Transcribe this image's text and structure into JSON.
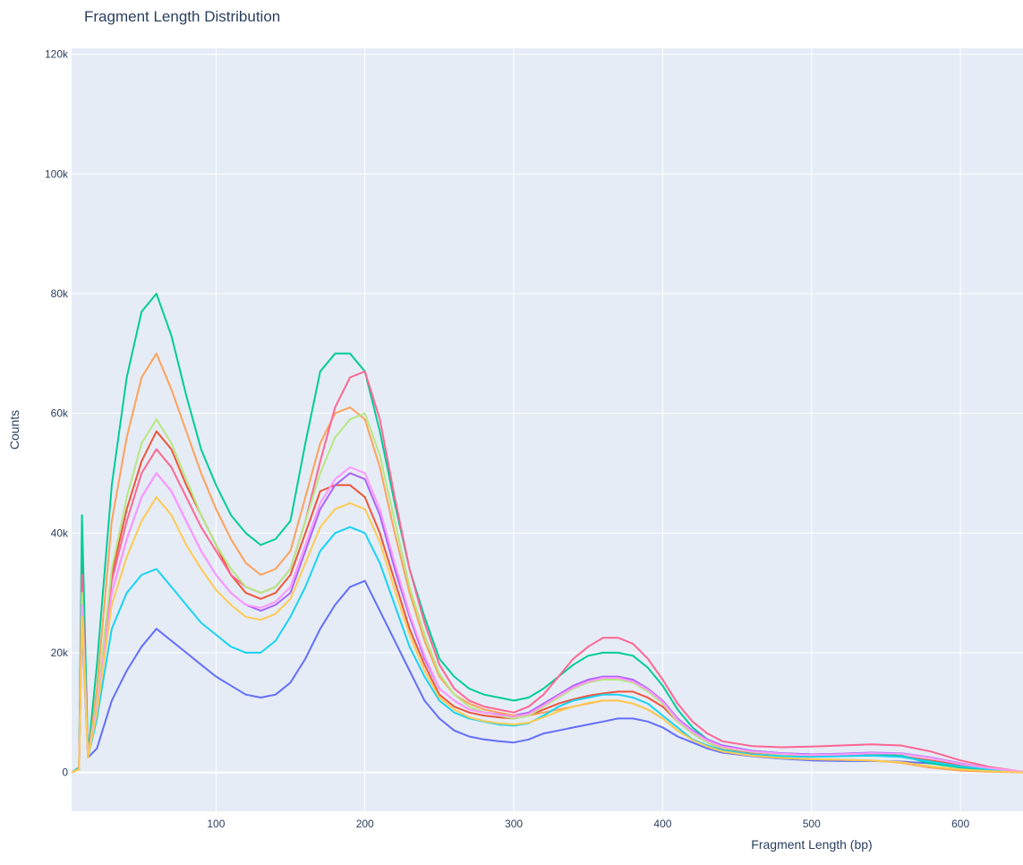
{
  "chart_data": {
    "type": "line",
    "title": "Fragment Length Distribution",
    "xlabel": "Fragment Length (bp)",
    "ylabel": "Counts",
    "xlim": [
      3,
      642
    ],
    "ylim": [
      -6500,
      121000
    ],
    "xticks": [
      100,
      200,
      300,
      400,
      500,
      600
    ],
    "xtick_labels": [
      "100",
      "200",
      "300",
      "400",
      "500",
      "600"
    ],
    "yticks": [
      0,
      20000,
      40000,
      60000,
      80000,
      100000,
      120000
    ],
    "ytick_labels": [
      "0",
      "20k",
      "40k",
      "60k",
      "80k",
      "100k",
      "120k"
    ],
    "grid": true,
    "legend": "none",
    "x": [
      3,
      8,
      10,
      14,
      20,
      30,
      40,
      50,
      60,
      70,
      80,
      90,
      100,
      110,
      120,
      130,
      140,
      150,
      160,
      170,
      180,
      190,
      200,
      210,
      220,
      230,
      240,
      250,
      260,
      270,
      280,
      290,
      300,
      310,
      320,
      330,
      340,
      350,
      360,
      370,
      380,
      390,
      400,
      410,
      420,
      430,
      440,
      460,
      480,
      500,
      520,
      540,
      560,
      580,
      600,
      620,
      642
    ],
    "series": [
      {
        "color": "#636efa",
        "values": [
          0,
          500,
          25000,
          2500,
          4000,
          12000,
          17000,
          21000,
          24000,
          22000,
          20000,
          18000,
          16000,
          14500,
          13000,
          12500,
          13000,
          15000,
          19000,
          24000,
          28000,
          31000,
          32000,
          27000,
          22000,
          17000,
          12000,
          9000,
          7000,
          6000,
          5500,
          5200,
          5000,
          5500,
          6500,
          7000,
          7500,
          8000,
          8500,
          9000,
          9000,
          8500,
          7500,
          6000,
          5000,
          4000,
          3300,
          2700,
          2300,
          2000,
          1900,
          1900,
          1800,
          1500,
          1000,
          500,
          100
        ]
      },
      {
        "color": "#ef553b",
        "values": [
          0,
          500,
          35000,
          2500,
          12000,
          33000,
          44000,
          52000,
          57000,
          54000,
          48000,
          43000,
          38000,
          33000,
          30000,
          29000,
          30000,
          33000,
          40000,
          47000,
          48000,
          48000,
          46000,
          40000,
          32000,
          24000,
          18000,
          13000,
          11000,
          10000,
          9500,
          9200,
          9000,
          9500,
          10500,
          11500,
          12200,
          12800,
          13200,
          13500,
          13500,
          12500,
          11000,
          8500,
          6500,
          5000,
          4000,
          3300,
          3000,
          2800,
          2800,
          2900,
          2700,
          2000,
          1200,
          600,
          100
        ]
      },
      {
        "color": "#00cc96",
        "values": [
          0,
          800,
          43000,
          3000,
          18000,
          48000,
          66000,
          77000,
          80000,
          73000,
          63000,
          54000,
          48000,
          43000,
          40000,
          38000,
          39000,
          42000,
          55000,
          67000,
          70000,
          70000,
          67000,
          57000,
          45000,
          34000,
          26000,
          19000,
          16000,
          14000,
          13000,
          12500,
          12000,
          12500,
          14000,
          16000,
          18000,
          19500,
          20000,
          20000,
          19500,
          17500,
          14500,
          10500,
          7500,
          5500,
          4500,
          3600,
          3200,
          3000,
          3000,
          3100,
          2800,
          1500,
          800,
          400,
          100
        ]
      },
      {
        "color": "#ab63fa",
        "values": [
          0,
          500,
          30000,
          2500,
          11000,
          30000,
          39000,
          46000,
          50000,
          47000,
          42000,
          37000,
          33000,
          30000,
          28000,
          27000,
          28000,
          30000,
          37000,
          44000,
          48000,
          50000,
          49000,
          43000,
          34000,
          26000,
          19000,
          14000,
          12000,
          10500,
          10000,
          9700,
          9500,
          10000,
          11500,
          13000,
          14500,
          15500,
          16000,
          16000,
          15500,
          14000,
          12000,
          9000,
          7000,
          5500,
          4500,
          3600,
          3200,
          3000,
          3100,
          3300,
          3200,
          2500,
          1500,
          700,
          100
        ]
      },
      {
        "color": "#ffa15a",
        "values": [
          0,
          600,
          28000,
          2500,
          14000,
          42000,
          56000,
          66000,
          70000,
          64000,
          57000,
          50000,
          44000,
          39000,
          35000,
          33000,
          34000,
          37000,
          46000,
          55000,
          60000,
          61000,
          59000,
          51000,
          40000,
          30000,
          22000,
          16000,
          13000,
          11500,
          10500,
          10000,
          9500,
          9500,
          10000,
          10500,
          11000,
          11500,
          12000,
          12000,
          11500,
          10500,
          9000,
          7000,
          5500,
          4300,
          3500,
          2800,
          2400,
          2200,
          2100,
          2000,
          1600,
          800,
          300,
          100,
          0
        ]
      },
      {
        "color": "#19d3f3",
        "values": [
          0,
          500,
          30000,
          2500,
          9000,
          24000,
          30000,
          33000,
          34000,
          31000,
          28000,
          25000,
          23000,
          21000,
          20000,
          20000,
          22000,
          26000,
          31000,
          37000,
          40000,
          41000,
          40000,
          35000,
          28000,
          21000,
          16000,
          12000,
          10000,
          9000,
          8500,
          8000,
          7800,
          8200,
          9500,
          11000,
          12000,
          12500,
          13000,
          13000,
          12500,
          11500,
          9500,
          7500,
          5500,
          4500,
          3700,
          3000,
          2700,
          2600,
          2700,
          2800,
          2600,
          1800,
          1000,
          500,
          100
        ]
      },
      {
        "color": "#ff6692",
        "values": [
          0,
          500,
          33000,
          2500,
          12000,
          32000,
          42000,
          50000,
          54000,
          51000,
          46000,
          41000,
          37000,
          33000,
          31000,
          30000,
          31000,
          34000,
          42000,
          52000,
          61000,
          66000,
          67000,
          59000,
          46000,
          34000,
          25000,
          18000,
          14000,
          12000,
          11000,
          10500,
          10000,
          11000,
          13000,
          16000,
          19000,
          21000,
          22500,
          22500,
          21500,
          19000,
          15500,
          11500,
          8500,
          6500,
          5200,
          4400,
          4200,
          4300,
          4500,
          4700,
          4500,
          3500,
          2000,
          900,
          100
        ]
      },
      {
        "color": "#b6e880",
        "values": [
          0,
          500,
          30000,
          2500,
          12000,
          34000,
          46000,
          55000,
          59000,
          55000,
          49000,
          43000,
          38000,
          34000,
          31000,
          30000,
          31000,
          34000,
          42000,
          50000,
          56000,
          59000,
          60000,
          53000,
          42000,
          31000,
          23000,
          16500,
          13000,
          11000,
          10000,
          9500,
          9000,
          9500,
          11000,
          12500,
          14000,
          15000,
          15500,
          15500,
          15000,
          13500,
          11500,
          8500,
          6500,
          5000,
          4100,
          3400,
          3000,
          2900,
          3000,
          3200,
          3100,
          2400,
          1400,
          700,
          100
        ]
      },
      {
        "color": "#ff97ff",
        "values": [
          0,
          500,
          28000,
          2500,
          11000,
          30000,
          39000,
          46000,
          50000,
          47000,
          42000,
          37000,
          33000,
          30000,
          28000,
          27500,
          28500,
          31000,
          38000,
          45000,
          49000,
          51000,
          50000,
          44000,
          35000,
          26500,
          19500,
          14000,
          12000,
          10500,
          10000,
          9600,
          9300,
          9800,
          11200,
          12800,
          14200,
          15200,
          15800,
          15800,
          15200,
          13800,
          11800,
          8800,
          6800,
          5300,
          4300,
          3500,
          3100,
          2900,
          3000,
          3200,
          3100,
          2400,
          1400,
          700,
          100
        ]
      },
      {
        "color": "#fecb52",
        "values": [
          0,
          500,
          26000,
          2500,
          10000,
          28000,
          36000,
          42000,
          46000,
          43000,
          38000,
          34000,
          30500,
          28000,
          26000,
          25500,
          26500,
          29000,
          35000,
          41000,
          44000,
          45000,
          44000,
          38500,
          30500,
          23000,
          17000,
          12500,
          10500,
          9200,
          8600,
          8200,
          8000,
          8300,
          9200,
          10200,
          11000,
          11600,
          12000,
          12000,
          11500,
          10500,
          9000,
          7000,
          5400,
          4300,
          3500,
          2800,
          2400,
          2200,
          2100,
          2000,
          1700,
          1000,
          500,
          200,
          0
        ]
      }
    ]
  }
}
